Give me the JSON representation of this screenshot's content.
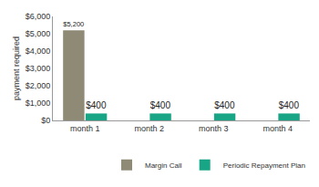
{
  "chart_data": {
    "type": "bar",
    "categories": [
      "month 1",
      "month 2",
      "month 3",
      "month 4"
    ],
    "series": [
      {
        "name": "Margin Call",
        "color": "#8f8a76",
        "values": [
          5200,
          null,
          null,
          null
        ],
        "value_labels": [
          "$5,200",
          null,
          null,
          null
        ]
      },
      {
        "name": "Periodic Repayment Plan",
        "color": "#17a585",
        "values": [
          400,
          400,
          400,
          400
        ],
        "value_labels": [
          "$400",
          "$400",
          "$400",
          "$400"
        ]
      }
    ],
    "y_label": "payment required",
    "ylim": [
      0,
      6000
    ],
    "yticks": [
      {
        "value": 0,
        "label": "$0"
      },
      {
        "value": 1000,
        "label": "$1,000"
      },
      {
        "value": 2000,
        "label": "$2,000"
      },
      {
        "value": 3000,
        "label": "$3,000"
      },
      {
        "value": 4000,
        "label": "$4,000"
      },
      {
        "value": 5000,
        "label": "$5,000"
      },
      {
        "value": 6000,
        "label": "$6,000"
      }
    ],
    "grid": false,
    "legend": "bottom",
    "data_labels": true
  }
}
